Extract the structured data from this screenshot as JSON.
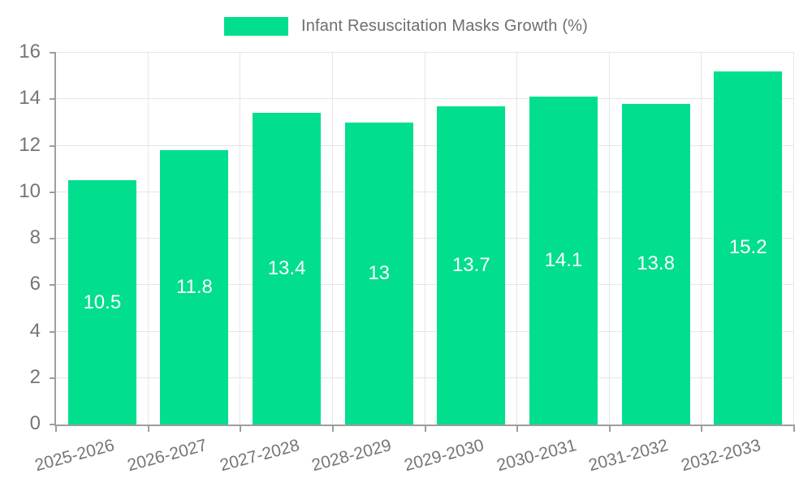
{
  "chart_data": {
    "type": "bar",
    "title": "Infant Resuscitation Masks Growth (%)",
    "categories": [
      "2025-2026",
      "2026-2027",
      "2027-2028",
      "2028-2029",
      "2029-2030",
      "2030-2031",
      "2031-2032",
      "2032-2033"
    ],
    "values": [
      10.5,
      11.8,
      13.4,
      13,
      13.7,
      14.1,
      13.8,
      15.2
    ],
    "value_labels": [
      "10.5",
      "11.8",
      "13.4",
      "13",
      "13.7",
      "14.1",
      "13.8",
      "15.2"
    ],
    "xlabel": "",
    "ylabel": "",
    "ylim": [
      0,
      16
    ],
    "yticks": [
      0,
      2,
      4,
      6,
      8,
      10,
      12,
      14,
      16
    ],
    "grid": true,
    "legend_position": "top-center",
    "legend_label": "Infant Resuscitation Masks Growth (%)",
    "colors": {
      "bar": "#00de8e",
      "value_label": "#ffffff",
      "axis": "#9e9e9e",
      "grid": "#e6e6e6",
      "tick_text": "#757575",
      "legend_text": "#6e6e6e"
    },
    "x_label_rotation_deg": -15
  }
}
